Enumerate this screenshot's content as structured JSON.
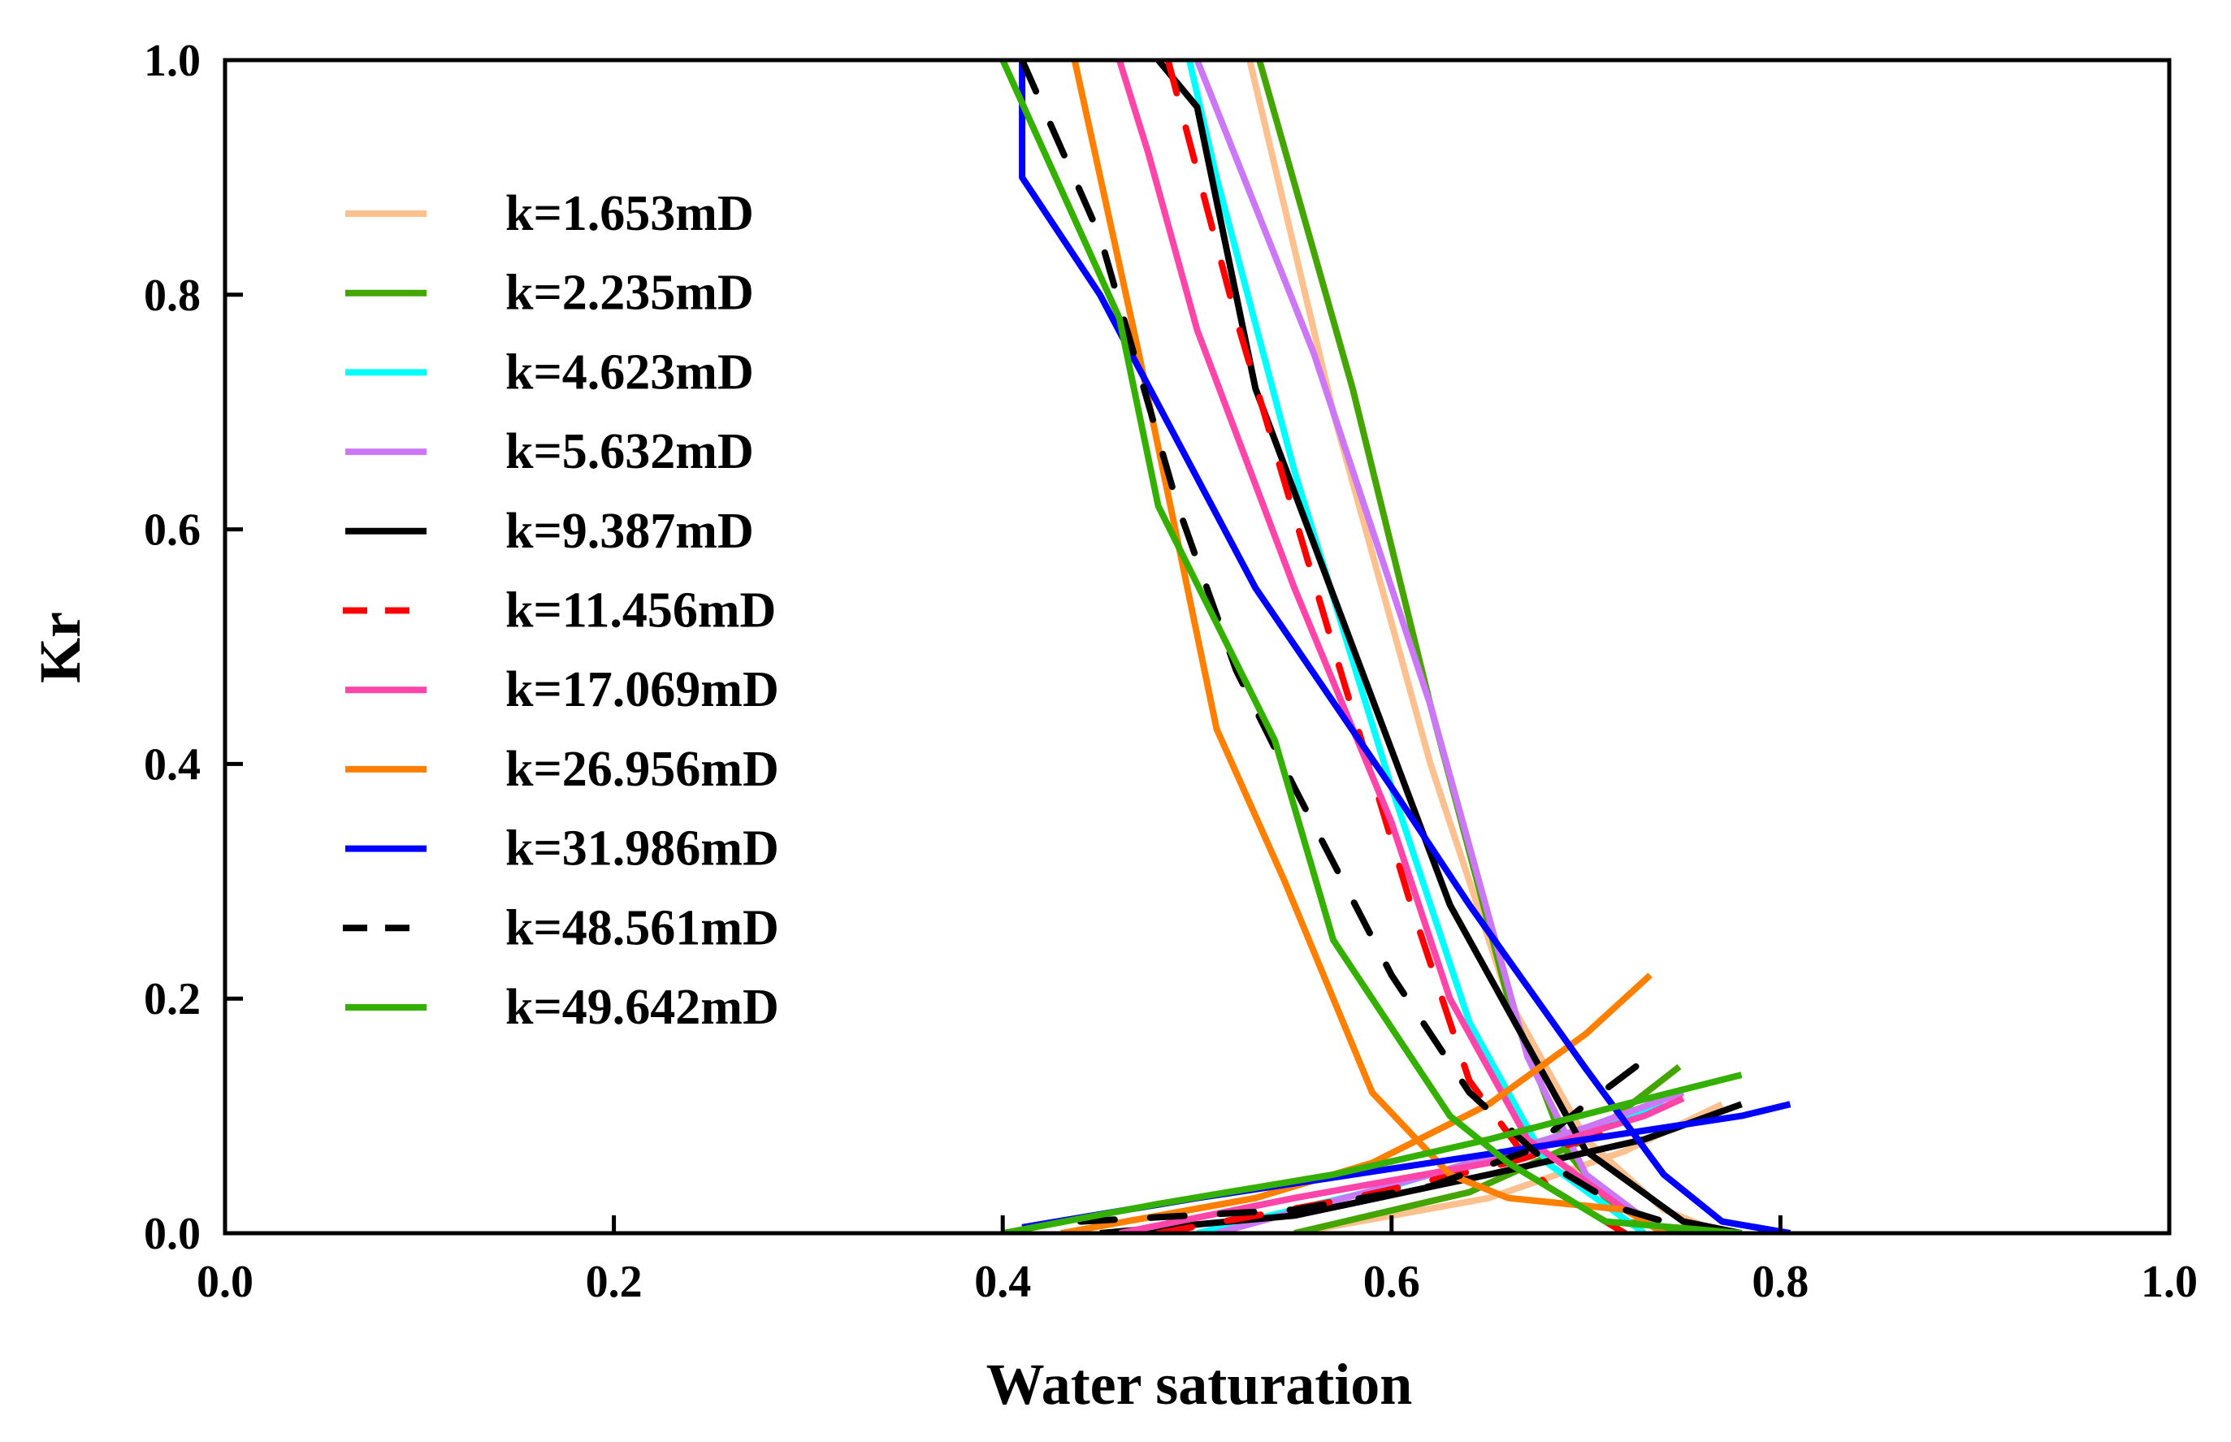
{
  "chart_data": {
    "type": "line",
    "title": "",
    "xlabel": "Water saturation",
    "ylabel": "Kr",
    "xlim": [
      0,
      1
    ],
    "ylim": [
      0,
      1
    ],
    "xticks": [
      "0.0",
      "0.2",
      "0.4",
      "0.6",
      "0.8",
      "1.0"
    ],
    "yticks": [
      "0.0",
      "0.2",
      "0.4",
      "0.6",
      "0.8",
      "1.0"
    ],
    "grid": false,
    "legend_position": "upper-left",
    "series": [
      {
        "name": "k=1.653mD",
        "color": "#FDC08F",
        "dash": false,
        "kro": [
          [
            0.527,
            1.0
          ],
          [
            0.57,
            0.7
          ],
          [
            0.62,
            0.4
          ],
          [
            0.66,
            0.2
          ],
          [
            0.7,
            0.08
          ],
          [
            0.74,
            0.02
          ],
          [
            0.77,
            0.0
          ]
        ],
        "krw": [
          [
            0.55,
            0.0
          ],
          [
            0.65,
            0.03
          ],
          [
            0.72,
            0.07
          ],
          [
            0.77,
            0.11
          ]
        ]
      },
      {
        "name": "k=2.235mD",
        "color": "#44A500",
        "dash": false,
        "kro": [
          [
            0.532,
            1.0
          ],
          [
            0.58,
            0.72
          ],
          [
            0.62,
            0.45
          ],
          [
            0.66,
            0.2
          ],
          [
            0.69,
            0.07
          ],
          [
            0.72,
            0.01
          ],
          [
            0.76,
            0.0
          ]
        ],
        "krw": [
          [
            0.55,
            0.0
          ],
          [
            0.64,
            0.035
          ],
          [
            0.7,
            0.08
          ],
          [
            0.748,
            0.142
          ]
        ]
      },
      {
        "name": "k=4.623mD",
        "color": "#00FFFF",
        "dash": false,
        "kro": [
          [
            0.496,
            1.0
          ],
          [
            0.51,
            0.9
          ],
          [
            0.55,
            0.65
          ],
          [
            0.6,
            0.38
          ],
          [
            0.64,
            0.18
          ],
          [
            0.68,
            0.06
          ],
          [
            0.73,
            0.0
          ]
        ],
        "krw": [
          [
            0.5,
            0.0
          ],
          [
            0.6,
            0.04
          ],
          [
            0.68,
            0.08
          ],
          [
            0.74,
            0.11
          ]
        ]
      },
      {
        "name": "k=5.632mD",
        "color": "#CC77F5",
        "dash": false,
        "kro": [
          [
            0.5,
            1.0
          ],
          [
            0.56,
            0.75
          ],
          [
            0.62,
            0.45
          ],
          [
            0.67,
            0.15
          ],
          [
            0.7,
            0.05
          ],
          [
            0.74,
            0.0
          ]
        ],
        "krw": [
          [
            0.51,
            0.0
          ],
          [
            0.62,
            0.05
          ],
          [
            0.7,
            0.09
          ],
          [
            0.75,
            0.12
          ]
        ]
      },
      {
        "name": "k=9.387mD",
        "color": "#000000",
        "dash": false,
        "kro": [
          [
            0.48,
            1.0
          ],
          [
            0.5,
            0.96
          ],
          [
            0.53,
            0.72
          ],
          [
            0.58,
            0.5
          ],
          [
            0.63,
            0.28
          ],
          [
            0.66,
            0.19
          ],
          [
            0.7,
            0.07
          ],
          [
            0.75,
            0.01
          ],
          [
            0.78,
            0.0
          ]
        ],
        "krw": [
          [
            0.45,
            0.0
          ],
          [
            0.55,
            0.015
          ],
          [
            0.65,
            0.05
          ],
          [
            0.73,
            0.08
          ],
          [
            0.78,
            0.11
          ]
        ]
      },
      {
        "name": "k=11.456mD",
        "color": "#FF0000",
        "dash": true,
        "kro": [
          [
            0.485,
            1.0
          ],
          [
            0.52,
            0.78
          ],
          [
            0.57,
            0.5
          ],
          [
            0.61,
            0.28
          ],
          [
            0.64,
            0.13
          ],
          [
            0.68,
            0.04
          ],
          [
            0.72,
            0.0
          ]
        ],
        "krw": [
          [
            0.48,
            0.0
          ],
          [
            0.58,
            0.03
          ],
          [
            0.66,
            0.06
          ],
          [
            0.72,
            0.09
          ]
        ]
      },
      {
        "name": "k=17.069mD",
        "color": "#FF44AA",
        "dash": false,
        "kro": [
          [
            0.46,
            1.0
          ],
          [
            0.475,
            0.92
          ],
          [
            0.5,
            0.77
          ],
          [
            0.55,
            0.55
          ],
          [
            0.6,
            0.35
          ],
          [
            0.63,
            0.2
          ],
          [
            0.67,
            0.08
          ],
          [
            0.72,
            0.02
          ],
          [
            0.74,
            0.0
          ]
        ],
        "krw": [
          [
            0.46,
            0.0
          ],
          [
            0.55,
            0.03
          ],
          [
            0.65,
            0.06
          ],
          [
            0.73,
            0.1
          ],
          [
            0.75,
            0.115
          ]
        ]
      },
      {
        "name": "k=26.956mD",
        "color": "#FF8000",
        "dash": false,
        "kro": [
          [
            0.437,
            1.0
          ],
          [
            0.47,
            0.75
          ],
          [
            0.51,
            0.43
          ],
          [
            0.545,
            0.3
          ],
          [
            0.59,
            0.12
          ],
          [
            0.63,
            0.05
          ],
          [
            0.66,
            0.03
          ],
          [
            0.72,
            0.02
          ],
          [
            0.74,
            0.0
          ]
        ],
        "krw": [
          [
            0.43,
            0.0
          ],
          [
            0.53,
            0.03
          ],
          [
            0.59,
            0.06
          ],
          [
            0.65,
            0.11
          ],
          [
            0.7,
            0.17
          ],
          [
            0.733,
            0.22
          ]
        ]
      },
      {
        "name": "k=31.986mD",
        "color": "#0000FF",
        "dash": false,
        "kro": [
          [
            0.41,
            1.0
          ],
          [
            0.41,
            0.9
          ],
          [
            0.45,
            0.8
          ],
          [
            0.53,
            0.55
          ],
          [
            0.6,
            0.38
          ],
          [
            0.64,
            0.28
          ],
          [
            0.7,
            0.14
          ],
          [
            0.74,
            0.05
          ],
          [
            0.77,
            0.01
          ],
          [
            0.805,
            0.0
          ]
        ],
        "krw": [
          [
            0.41,
            0.005
          ],
          [
            0.5,
            0.03
          ],
          [
            0.6,
            0.055
          ],
          [
            0.7,
            0.08
          ],
          [
            0.78,
            0.1
          ],
          [
            0.805,
            0.11
          ]
        ]
      },
      {
        "name": "k=48.561mD",
        "color": "#000000",
        "dash": true,
        "kro": [
          [
            0.41,
            1.0
          ],
          [
            0.45,
            0.85
          ],
          [
            0.49,
            0.62
          ],
          [
            0.52,
            0.48
          ],
          [
            0.55,
            0.38
          ],
          [
            0.6,
            0.22
          ],
          [
            0.64,
            0.12
          ],
          [
            0.68,
            0.06
          ],
          [
            0.72,
            0.02
          ],
          [
            0.76,
            0.0
          ]
        ],
        "krw": [
          [
            0.44,
            0.01
          ],
          [
            0.55,
            0.02
          ],
          [
            0.62,
            0.04
          ],
          [
            0.67,
            0.07
          ],
          [
            0.7,
            0.11
          ],
          [
            0.74,
            0.16
          ]
        ]
      },
      {
        "name": "k=49.642mD",
        "color": "#33B000",
        "dash": false,
        "kro": [
          [
            0.4,
            1.0
          ],
          [
            0.46,
            0.78
          ],
          [
            0.48,
            0.62
          ],
          [
            0.54,
            0.42
          ],
          [
            0.57,
            0.25
          ],
          [
            0.63,
            0.1
          ],
          [
            0.66,
            0.06
          ],
          [
            0.71,
            0.01
          ],
          [
            0.78,
            0.0
          ]
        ],
        "krw": [
          [
            0.4,
            0.0
          ],
          [
            0.48,
            0.025
          ],
          [
            0.57,
            0.05
          ],
          [
            0.65,
            0.08
          ],
          [
            0.72,
            0.11
          ],
          [
            0.78,
            0.135
          ]
        ]
      }
    ]
  }
}
